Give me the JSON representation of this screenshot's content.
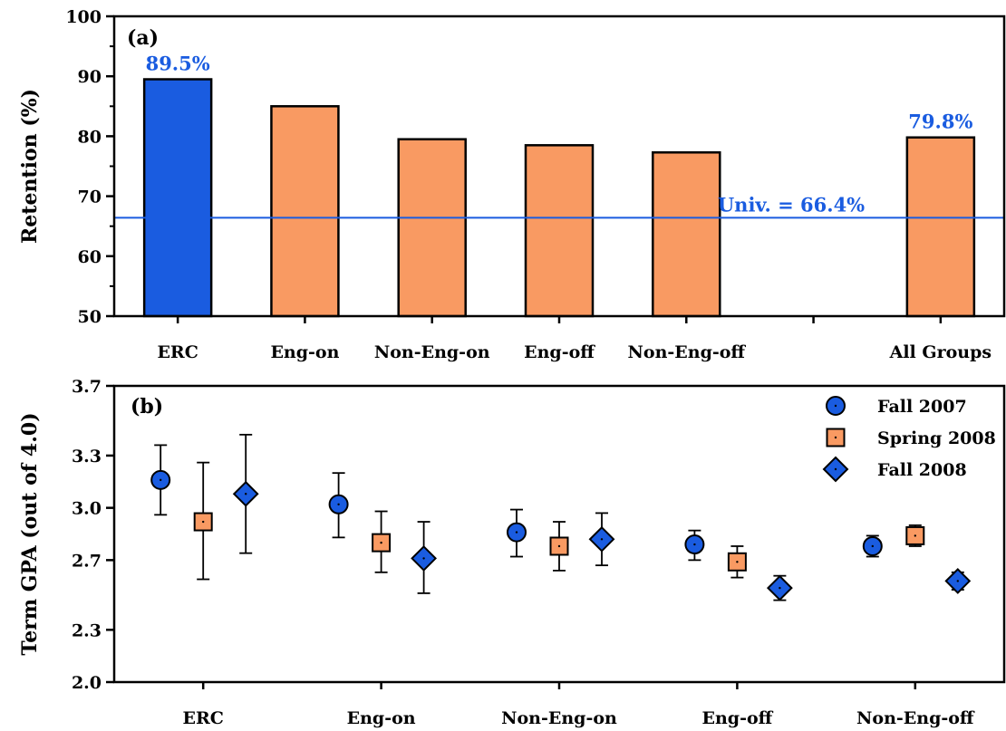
{
  "chart_data": [
    {
      "type": "bar",
      "panel_label": "(a)",
      "ylabel": "Retention (%)",
      "xlabel": "",
      "ylim": [
        50,
        100
      ],
      "yticks": [
        50,
        60,
        70,
        80,
        90,
        100
      ],
      "categories": [
        "ERC",
        "Eng-on",
        "Non-Eng-on",
        "Eng-off",
        "Non-Eng-off",
        "All Groups"
      ],
      "category_slots": [
        1,
        2,
        3,
        4,
        5,
        7
      ],
      "slot_count": 7,
      "values": [
        89.5,
        85.0,
        79.5,
        78.5,
        77.3,
        79.8
      ],
      "bar_colors": [
        "#1a5ce0",
        "#f99a62",
        "#f99a62",
        "#f99a62",
        "#f99a62",
        "#f99a62"
      ],
      "value_labels": [
        {
          "category": "ERC",
          "text": "89.5%"
        },
        {
          "category": "All Groups",
          "text": "79.8%"
        }
      ],
      "reference_line": {
        "value": 66.4,
        "label": "Univ. = 66.4%",
        "color": "#1a5ce0"
      },
      "grid": false
    },
    {
      "type": "scatter",
      "panel_label": "(b)",
      "ylabel": "Term GPA (out of 4.0)",
      "xlabel": "",
      "ylim": [
        2.0,
        3.7
      ],
      "yticks": [
        "2.0",
        "2.3",
        "2.7",
        "3.0",
        "3.3",
        "3.7"
      ],
      "categories": [
        "ERC",
        "Eng-on",
        "Non-Eng-on",
        "Eng-off",
        "Non-Eng-off"
      ],
      "legend_position": "top-right",
      "series": [
        {
          "name": "Fall 2007",
          "marker": "circle",
          "color": "#1a5ce0",
          "values": [
            3.16,
            3.02,
            2.86,
            2.79,
            2.78
          ],
          "err_low": [
            2.96,
            2.83,
            2.72,
            2.7,
            2.72
          ],
          "err_high": [
            3.36,
            3.2,
            2.99,
            2.87,
            2.84
          ]
        },
        {
          "name": "Spring 2008",
          "marker": "square",
          "color": "#f99a62",
          "values": [
            2.92,
            2.8,
            2.78,
            2.69,
            2.84
          ],
          "err_low": [
            2.59,
            2.63,
            2.64,
            2.6,
            2.78
          ],
          "err_high": [
            3.26,
            2.98,
            2.92,
            2.78,
            2.9
          ]
        },
        {
          "name": "Fall 2008",
          "marker": "diamond",
          "color": "#1a5ce0",
          "values": [
            3.08,
            2.71,
            2.82,
            2.54,
            2.58
          ],
          "err_low": [
            2.74,
            2.51,
            2.67,
            2.47,
            2.53
          ],
          "err_high": [
            3.42,
            2.92,
            2.97,
            2.61,
            2.63
          ]
        }
      ],
      "grid": false
    }
  ]
}
